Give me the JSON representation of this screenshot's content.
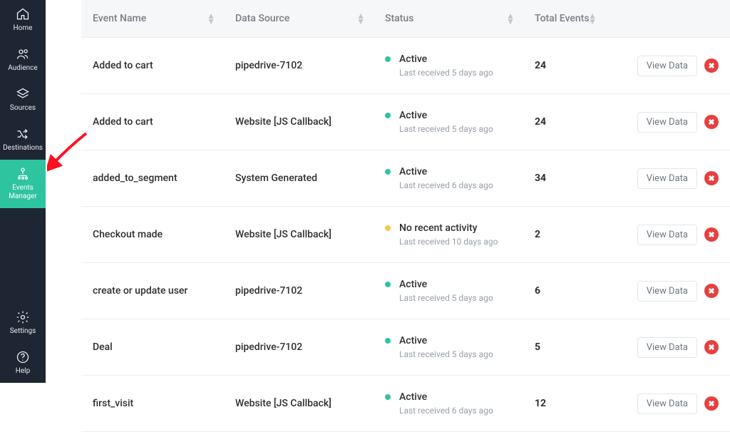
{
  "sidebar": {
    "top": [
      {
        "label": "Home",
        "name": "home",
        "icon": "home-icon"
      },
      {
        "label": "Audience",
        "name": "audience",
        "icon": "users-icon"
      },
      {
        "label": "Sources",
        "name": "sources",
        "icon": "layers-icon"
      },
      {
        "label": "Destinations",
        "name": "destinations",
        "icon": "shuffle-icon"
      },
      {
        "label": "Events Manager",
        "name": "events-manager",
        "icon": "person-tree-icon",
        "active": true
      }
    ],
    "bottom": [
      {
        "label": "Settings",
        "name": "settings",
        "icon": "gear-icon"
      },
      {
        "label": "Help",
        "name": "help",
        "icon": "help-icon"
      }
    ]
  },
  "table": {
    "columns": [
      {
        "label": "Event Name"
      },
      {
        "label": "Data Source"
      },
      {
        "label": "Status"
      },
      {
        "label": "Total Events"
      },
      {
        "label": ""
      }
    ],
    "action_label": "View Data",
    "rows": [
      {
        "name": "Added to cart",
        "source": "pipedrive-7102",
        "status": "Active",
        "status_color": "#2ec4a0",
        "sub": "Last received 5 days ago",
        "total": "24"
      },
      {
        "name": "Added to cart",
        "source": "Website [JS Callback]",
        "status": "Active",
        "status_color": "#2ec4a0",
        "sub": "Last received 5 days ago",
        "total": "24"
      },
      {
        "name": "added_to_segment",
        "source": "System Generated",
        "status": "Active",
        "status_color": "#2ec4a0",
        "sub": "Last received 6 days ago",
        "total": "34"
      },
      {
        "name": "Checkout made",
        "source": "Website [JS Callback]",
        "status": "No recent activity",
        "status_color": "#f2c94c",
        "sub": "Last received 10 days ago",
        "total": "2"
      },
      {
        "name": "create or update user",
        "source": "pipedrive-7102",
        "status": "Active",
        "status_color": "#2ec4a0",
        "sub": "Last received 5 days ago",
        "total": "6"
      },
      {
        "name": "Deal",
        "source": "pipedrive-7102",
        "status": "Active",
        "status_color": "#2ec4a0",
        "sub": "Last received 5 days ago",
        "total": "5"
      },
      {
        "name": "first_visit",
        "source": "Website [JS Callback]",
        "status": "Active",
        "status_color": "#2ec4a0",
        "sub": "Last received 6 days ago",
        "total": "12"
      }
    ]
  },
  "colors": {
    "sidebar_bg": "#1e2633",
    "active_bg": "#2ec4a0",
    "arrow": "#ff1020",
    "delete": "#e64040"
  }
}
